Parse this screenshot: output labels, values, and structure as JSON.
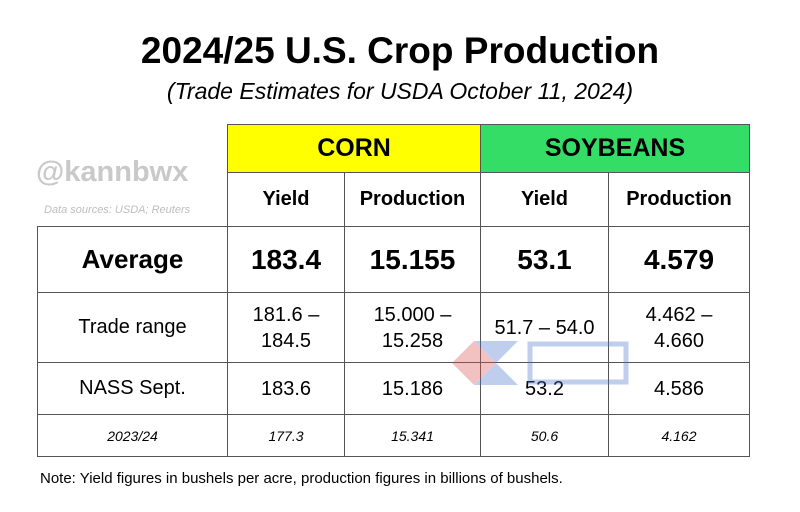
{
  "title": "2024/25 U.S. Crop Production",
  "subtitle": "(Trade Estimates for USDA October 11, 2024)",
  "handle": "@kannbwx",
  "sources": "Data sources: USDA; Reuters",
  "note": "Note: Yield figures in bushels per acre, production figures in billions of bushels.",
  "colors": {
    "corn_header": "#ffff00",
    "soybeans_header": "#33dd66"
  },
  "chart_data": {
    "type": "table",
    "groups": [
      "CORN",
      "SOYBEANS"
    ],
    "columns": [
      "Yield",
      "Production",
      "Yield",
      "Production"
    ],
    "rows": [
      {
        "label": "Average",
        "values": [
          "183.4",
          "15.155",
          "53.1",
          "4.579"
        ]
      },
      {
        "label": "Trade range",
        "values": [
          "181.6 –\n184.5",
          "15.000 –\n15.258",
          "51.7 – 54.0",
          "4.462 –\n4.660"
        ]
      },
      {
        "label": "NASS Sept.",
        "values": [
          "183.6",
          "15.186",
          "53.2",
          "4.586"
        ]
      },
      {
        "label": "2023/24",
        "values": [
          "177.3",
          "15.341",
          "50.6",
          "4.162"
        ]
      }
    ]
  }
}
